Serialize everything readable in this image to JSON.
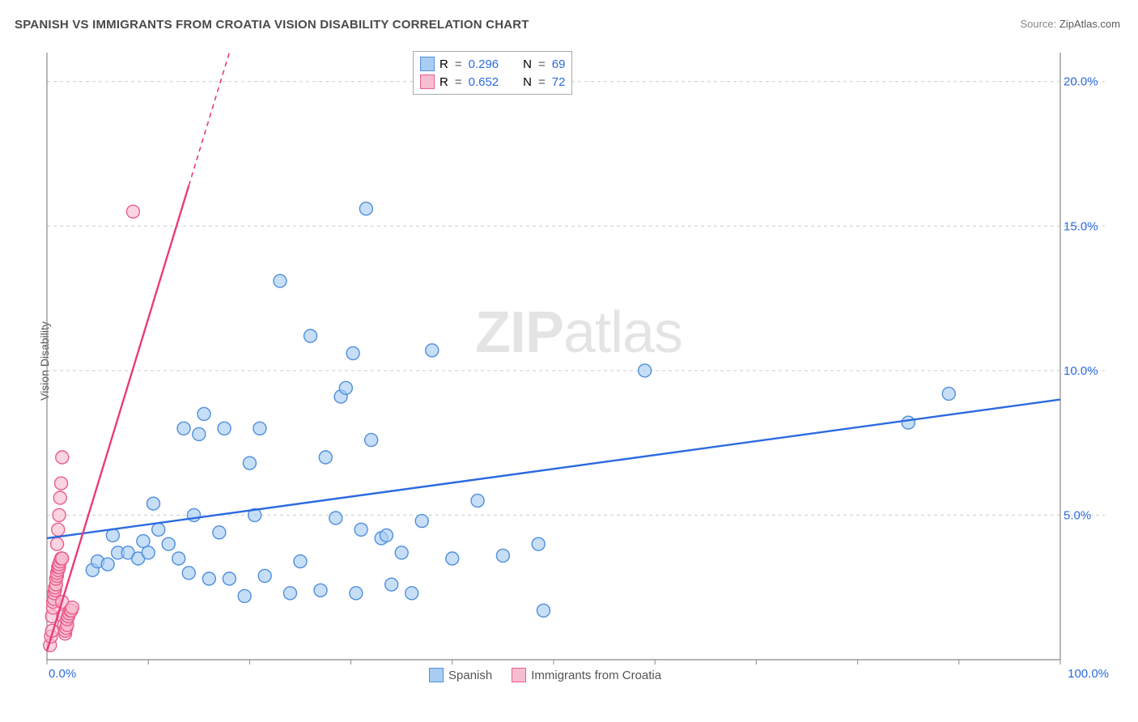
{
  "title": "SPANISH VS IMMIGRANTS FROM CROATIA VISION DISABILITY CORRELATION CHART",
  "source_label": "Source: ",
  "source_value": "ZipAtlas.com",
  "ylabel": "Vision Disability",
  "watermark_zip": "ZIP",
  "watermark_atlas": "atlas",
  "chart": {
    "background_color": "#ffffff",
    "grid_color": "#cccccc",
    "axis_color": "#888888",
    "axis_label_color": "#2b6ae0",
    "xlim": [
      0,
      100
    ],
    "ylim": [
      0,
      21
    ],
    "x_ticks": [
      0,
      10,
      20,
      30,
      40,
      50,
      60,
      70,
      80,
      90,
      100
    ],
    "x_tick_labels": {
      "0": "0.0%",
      "100": "100.0%"
    },
    "y_gridlines": [
      5,
      10,
      15,
      20
    ],
    "y_tick_labels": {
      "5": "5.0%",
      "10": "10.0%",
      "15": "15.0%",
      "20": "20.0%"
    },
    "marker_radius": 8,
    "marker_stroke_width": 1.4,
    "line_width": 2.4,
    "series": [
      {
        "name": "Spanish",
        "fill": "#a9cdf2",
        "stroke": "#4f8fdc",
        "line_color": "#2b6ae0",
        "R": "0.296",
        "N": "69",
        "trend": {
          "x1": 0,
          "y1": 4.2,
          "x2": 100,
          "y2": 9.0,
          "dashed": false
        },
        "points": [
          [
            4.5,
            3.1
          ],
          [
            5.0,
            3.4
          ],
          [
            6.0,
            3.3
          ],
          [
            6.5,
            4.3
          ],
          [
            7.0,
            3.7
          ],
          [
            8.0,
            3.7
          ],
          [
            9.0,
            3.5
          ],
          [
            9.5,
            4.1
          ],
          [
            10.0,
            3.7
          ],
          [
            10.5,
            5.4
          ],
          [
            11.0,
            4.5
          ],
          [
            12.0,
            4.0
          ],
          [
            13.0,
            3.5
          ],
          [
            13.5,
            8.0
          ],
          [
            14.0,
            3.0
          ],
          [
            14.5,
            5.0
          ],
          [
            15.0,
            7.8
          ],
          [
            15.5,
            8.5
          ],
          [
            16.0,
            2.8
          ],
          [
            17.0,
            4.4
          ],
          [
            17.5,
            8.0
          ],
          [
            18.0,
            2.8
          ],
          [
            19.5,
            2.2
          ],
          [
            20.0,
            6.8
          ],
          [
            20.5,
            5.0
          ],
          [
            21.0,
            8.0
          ],
          [
            21.5,
            2.9
          ],
          [
            23.0,
            13.1
          ],
          [
            24.0,
            2.3
          ],
          [
            25.0,
            3.4
          ],
          [
            26.0,
            11.2
          ],
          [
            27.0,
            2.4
          ],
          [
            27.5,
            7.0
          ],
          [
            28.5,
            4.9
          ],
          [
            29.0,
            9.1
          ],
          [
            29.5,
            9.4
          ],
          [
            30.2,
            10.6
          ],
          [
            30.5,
            2.3
          ],
          [
            31.0,
            4.5
          ],
          [
            31.5,
            15.6
          ],
          [
            32.0,
            7.6
          ],
          [
            33.0,
            4.2
          ],
          [
            33.5,
            4.3
          ],
          [
            34.0,
            2.6
          ],
          [
            35.0,
            3.7
          ],
          [
            36.0,
            2.3
          ],
          [
            37.0,
            4.8
          ],
          [
            38.0,
            10.7
          ],
          [
            40.0,
            3.5
          ],
          [
            42.5,
            5.5
          ],
          [
            45.0,
            3.6
          ],
          [
            48.5,
            4.0
          ],
          [
            49.0,
            1.7
          ],
          [
            59.0,
            10.0
          ],
          [
            85.0,
            8.2
          ],
          [
            89.0,
            9.2
          ]
        ]
      },
      {
        "name": "Immigrants from Croatia",
        "fill": "#f7bdd0",
        "stroke": "#ea5d8b",
        "line_color": "#ea3b78",
        "R": "0.652",
        "N": "72",
        "trend": {
          "x1": 0,
          "y1": 0.3,
          "x2": 18,
          "y2": 21,
          "dashed_after_x": 14
        },
        "points": [
          [
            0.3,
            0.5
          ],
          [
            0.4,
            0.8
          ],
          [
            0.5,
            1.0
          ],
          [
            0.5,
            1.5
          ],
          [
            0.6,
            1.8
          ],
          [
            0.6,
            2.0
          ],
          [
            0.7,
            2.1
          ],
          [
            0.7,
            2.3
          ],
          [
            0.8,
            2.4
          ],
          [
            0.8,
            2.5
          ],
          [
            0.9,
            2.6
          ],
          [
            0.9,
            2.8
          ],
          [
            1.0,
            2.9
          ],
          [
            1.0,
            3.0
          ],
          [
            1.1,
            3.1
          ],
          [
            1.1,
            3.2
          ],
          [
            1.2,
            3.2
          ],
          [
            1.2,
            3.3
          ],
          [
            1.3,
            3.4
          ],
          [
            1.4,
            3.5
          ],
          [
            1.5,
            3.5
          ],
          [
            1.5,
            2.0
          ],
          [
            1.6,
            1.5
          ],
          [
            1.7,
            1.2
          ],
          [
            1.8,
            0.9
          ],
          [
            1.8,
            1.0
          ],
          [
            1.9,
            1.1
          ],
          [
            2.0,
            1.2
          ],
          [
            2.0,
            1.4
          ],
          [
            2.1,
            1.5
          ],
          [
            2.2,
            1.6
          ],
          [
            2.3,
            1.7
          ],
          [
            2.4,
            1.7
          ],
          [
            2.5,
            1.8
          ],
          [
            1.0,
            4.0
          ],
          [
            1.1,
            4.5
          ],
          [
            1.2,
            5.0
          ],
          [
            1.3,
            5.6
          ],
          [
            1.4,
            6.1
          ],
          [
            1.5,
            7.0
          ],
          [
            8.5,
            15.5
          ]
        ]
      }
    ]
  },
  "legend_top": {
    "R_label": "R",
    "N_label": "N",
    "eq": "="
  },
  "legend_bottom": [
    {
      "label": "Spanish",
      "fill": "#a9cdf2",
      "stroke": "#4f8fdc"
    },
    {
      "label": "Immigrants from Croatia",
      "fill": "#f7bdd0",
      "stroke": "#ea5d8b"
    }
  ]
}
